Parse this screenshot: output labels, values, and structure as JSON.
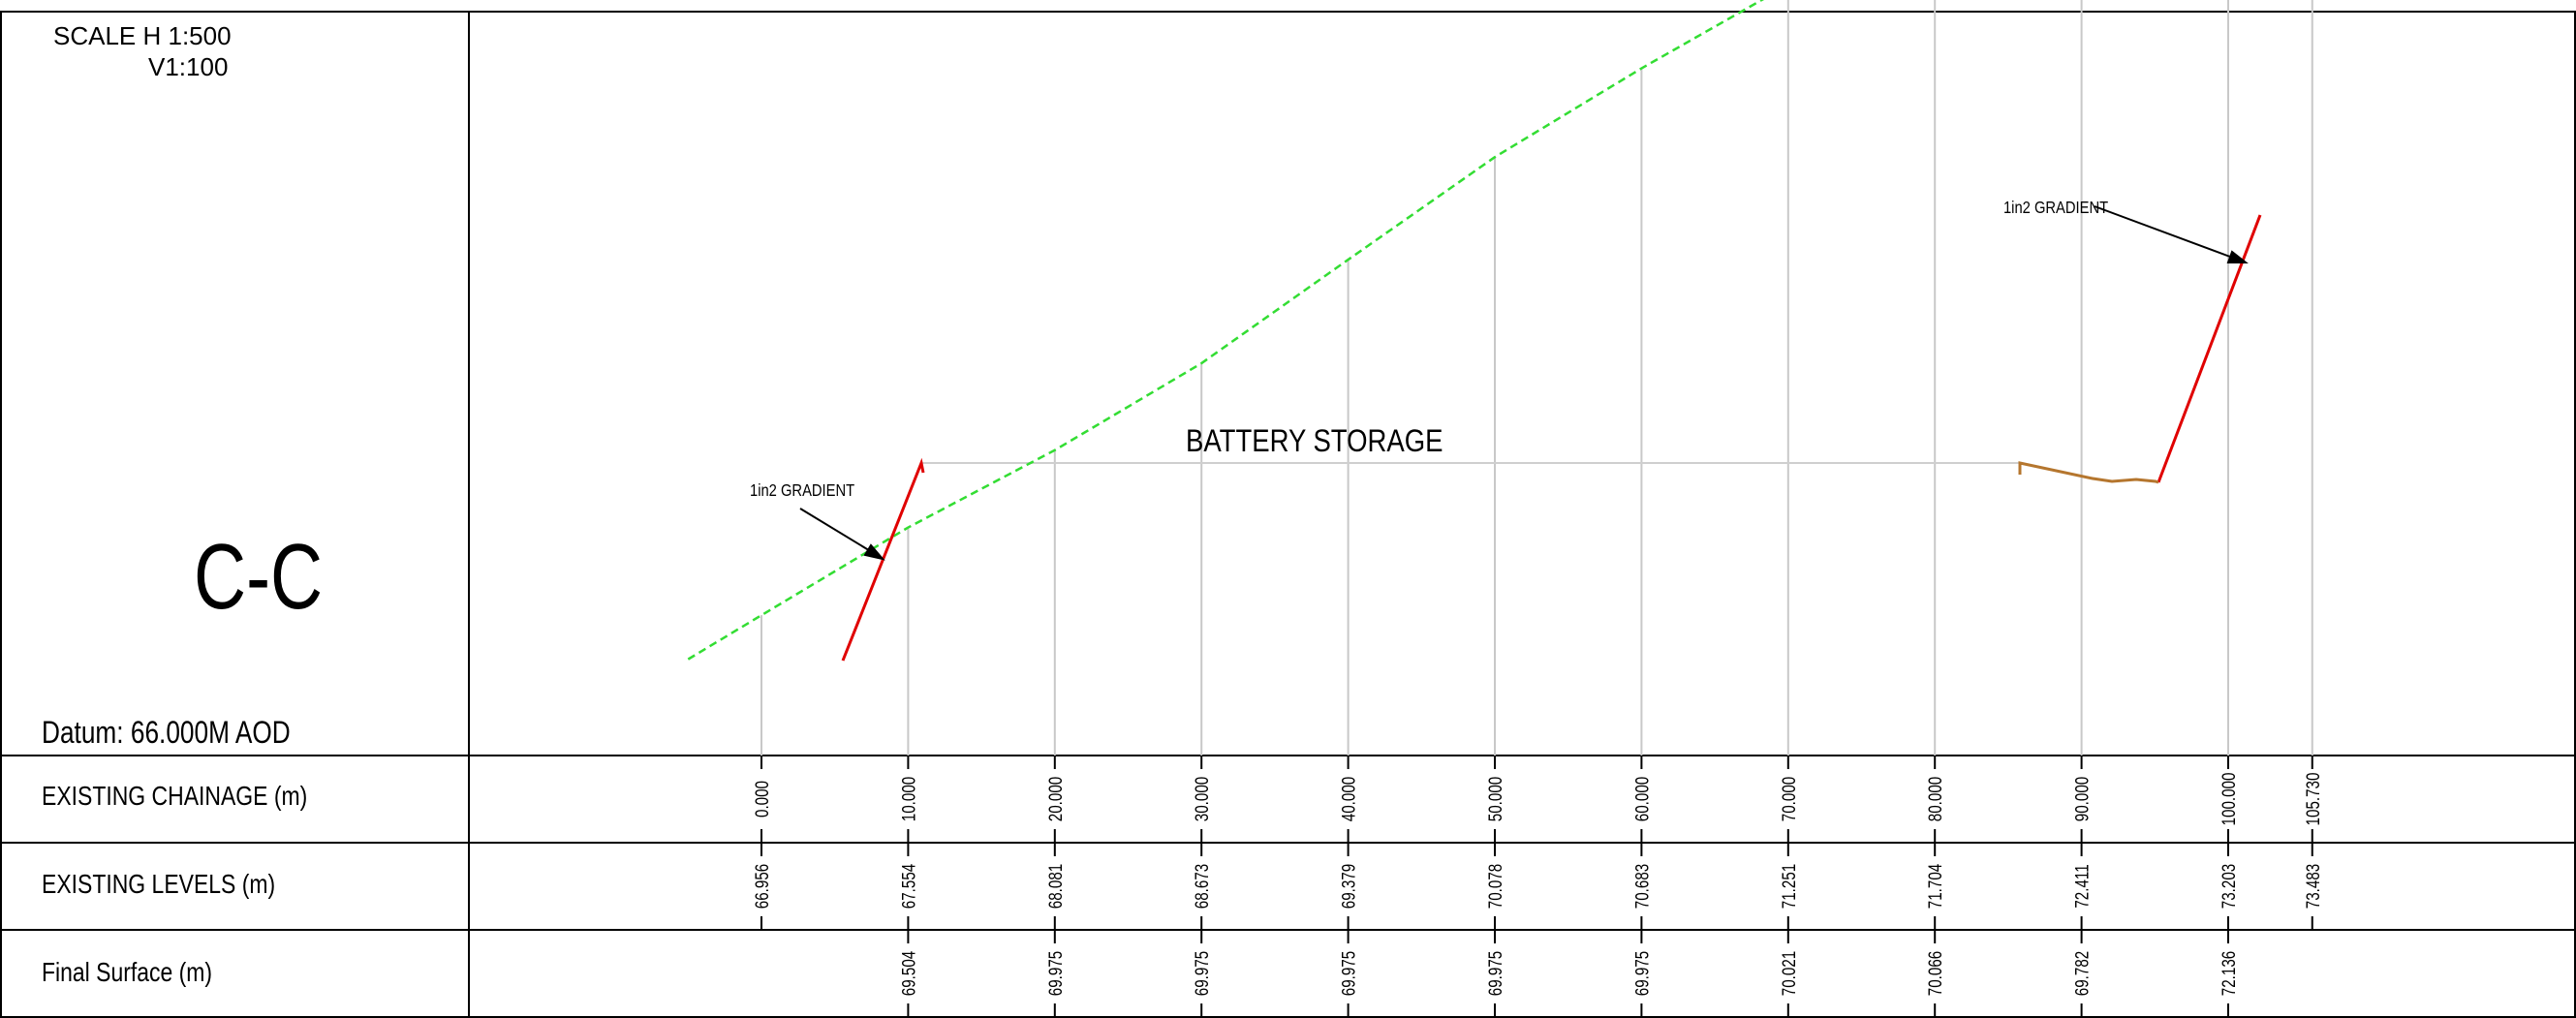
{
  "scale": {
    "line1": "SCALE H 1:500",
    "line2": "V1:100"
  },
  "section_label": "C-C",
  "datum": "Datum: 66.000M AOD",
  "rows": {
    "chainage_label": "EXISTING CHAINAGE (m)",
    "levels_label": "EXISTING LEVELS (m)",
    "final_label": "Final Surface (m)"
  },
  "annotations": {
    "battery_storage": "BATTERY STORAGE",
    "gradient_left": "1in2 GRADIENT",
    "gradient_right": "1in2 GRADIENT"
  },
  "colors": {
    "existing_ground": "#33dd33",
    "cut_slope": "#e00000",
    "final_surface_dip": "#b5762e",
    "gridline": "#c8c8c8"
  },
  "chart_data": {
    "type": "line",
    "series": [
      {
        "name": "EXISTING LEVELS (m)",
        "x": [
          0,
          10,
          20,
          30,
          40,
          50,
          60,
          70,
          80,
          90,
          100,
          105.73
        ],
        "values": [
          66.956,
          67.554,
          68.081,
          68.673,
          69.379,
          70.078,
          70.683,
          71.251,
          71.704,
          72.411,
          73.203,
          73.483
        ]
      },
      {
        "name": "Final Surface (m)",
        "x": [
          10,
          20,
          30,
          40,
          50,
          60,
          70,
          80,
          90,
          100
        ],
        "values": [
          69.504,
          69.975,
          69.975,
          69.975,
          69.975,
          69.975,
          70.021,
          70.066,
          69.782,
          72.136
        ]
      }
    ],
    "chainage_labels": [
      "0.000",
      "10.000",
      "20.000",
      "30.000",
      "40.000",
      "50.000",
      "60.000",
      "70.000",
      "80.000",
      "90.000",
      "100.000",
      "105.730"
    ],
    "level_labels": [
      "66.956",
      "67.554",
      "68.081",
      "68.673",
      "69.379",
      "70.078",
      "70.683",
      "71.251",
      "71.704",
      "72.411",
      "73.203",
      "73.483"
    ],
    "final_labels": [
      null,
      "69.504",
      "69.975",
      "69.975",
      "69.975",
      "69.975",
      "69.975",
      "70.021",
      "70.066",
      "69.782",
      "72.136",
      null
    ]
  }
}
